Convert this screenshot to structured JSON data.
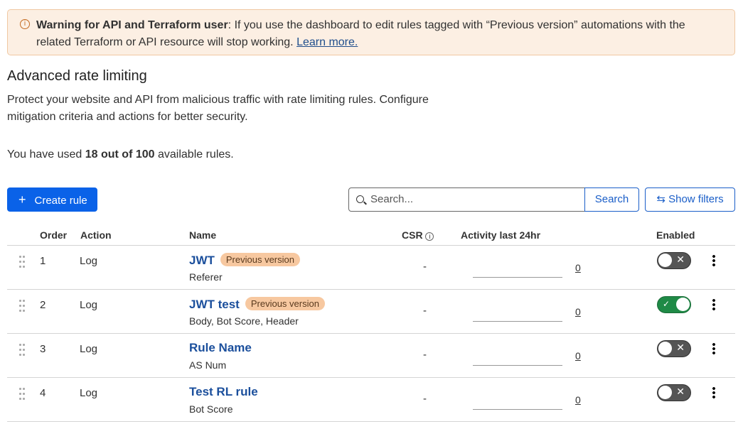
{
  "warning": {
    "icon": "info-icon",
    "bold": "Warning for API and Terraform user",
    "text": ": If you use the dashboard to edit rules tagged with “Previous version” automations with the related Terraform or API resource will stop working. ",
    "link": "Learn more."
  },
  "title": "Advanced rate limiting",
  "description": "Protect your website and API from malicious traffic with rate limiting rules. Configure mitigation criteria and actions for better security.",
  "usage": {
    "prefix": "You have used ",
    "bold": "18 out of 100",
    "suffix": " available rules."
  },
  "toolbar": {
    "create": "Create rule",
    "search_placeholder": "Search...",
    "search": "Search",
    "filters": "Show filters"
  },
  "table": {
    "headers": {
      "order": "Order",
      "action": "Action",
      "name": "Name",
      "csr": "CSR",
      "activity": "Activity last 24hr",
      "enabled": "Enabled"
    },
    "rows": [
      {
        "order": "1",
        "action": "Log",
        "name": "JWT",
        "badge": "Previous version",
        "fields": "Referer",
        "csr": "-",
        "activity": "0",
        "enabled": false
      },
      {
        "order": "2",
        "action": "Log",
        "name": "JWT test",
        "badge": "Previous version",
        "fields": "Body, Bot Score, Header",
        "csr": "-",
        "activity": "0",
        "enabled": true
      },
      {
        "order": "3",
        "action": "Log",
        "name": "Rule Name",
        "badge": "",
        "fields": "AS Num",
        "csr": "-",
        "activity": "0",
        "enabled": false
      },
      {
        "order": "4",
        "action": "Log",
        "name": "Test RL rule",
        "badge": "",
        "fields": "Bot Score",
        "csr": "-",
        "activity": "0",
        "enabled": false
      }
    ]
  },
  "colors": {
    "primary": "#0a62e8",
    "warning_bg": "#fcefe3",
    "badge": "#f7c8a0",
    "toggle_on": "#1f8a46"
  }
}
